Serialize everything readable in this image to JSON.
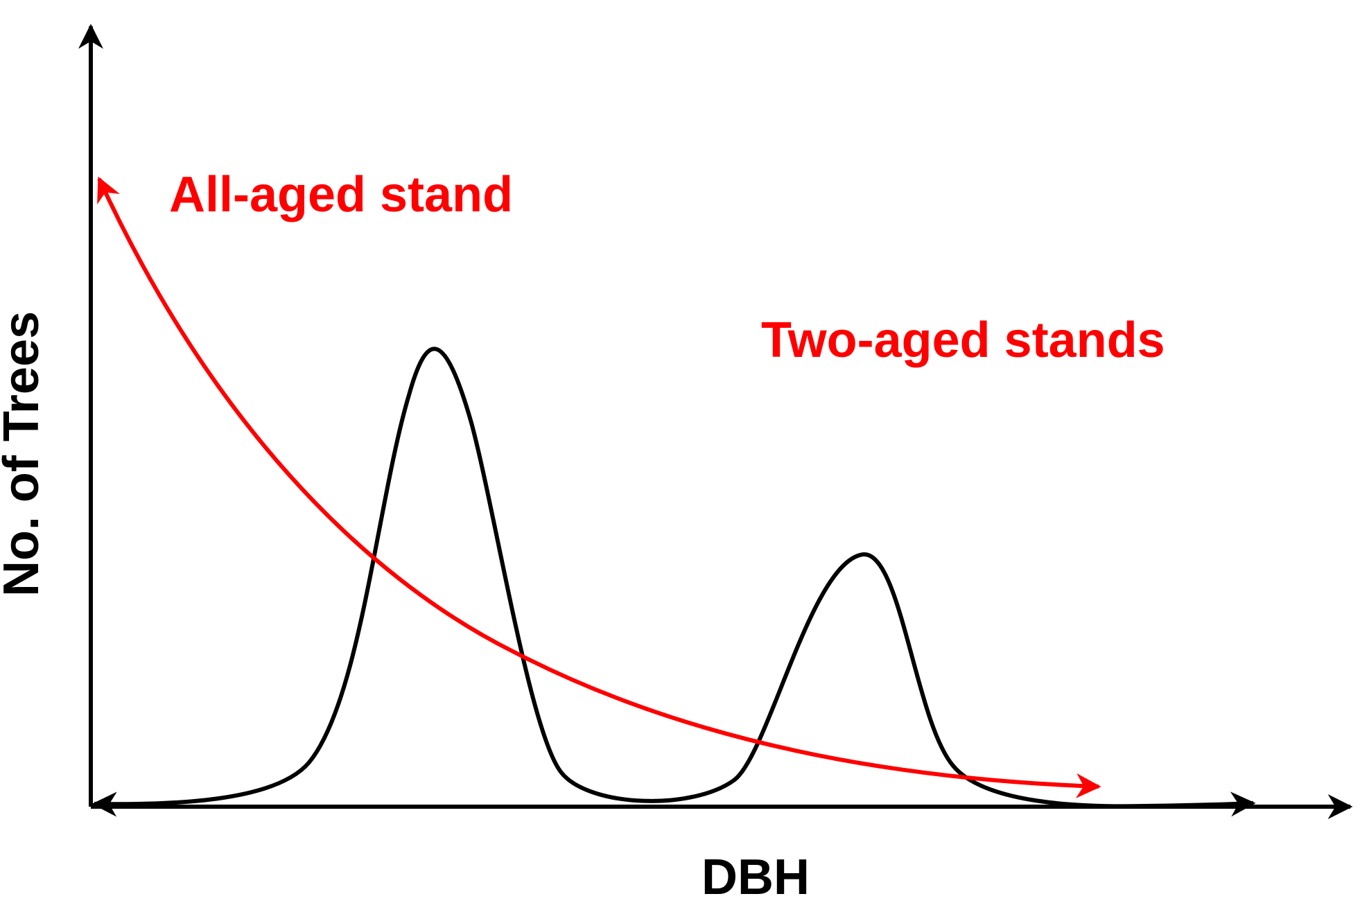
{
  "chart_data": {
    "type": "line",
    "title": "",
    "xlabel": "DBH",
    "ylabel": "No. of Trees",
    "grid": false,
    "ticks": "none",
    "colors": {
      "axes": "#000000",
      "all_aged": "#ff0000",
      "two_aged": "#000000"
    },
    "annotations": [
      {
        "text": "All-aged stand",
        "color": "#ff0000"
      },
      {
        "text": "Two-aged stands",
        "color": "#ff0000"
      }
    ]
  }
}
